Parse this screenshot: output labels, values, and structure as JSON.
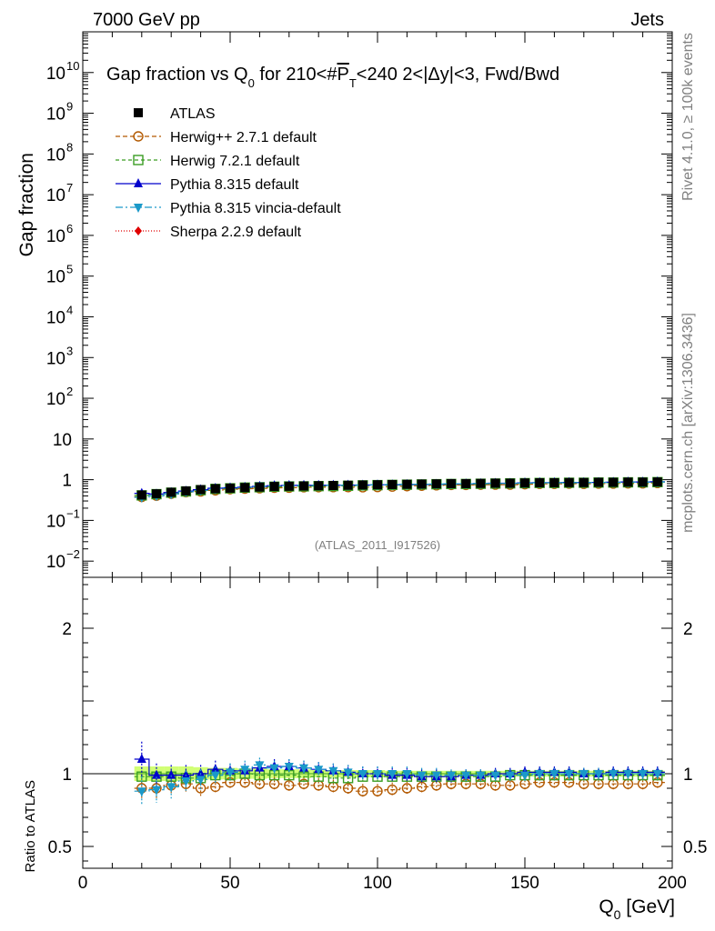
{
  "header": {
    "left": "7000 GeV pp",
    "right": "Jets"
  },
  "side_labels": {
    "rivet": "Rivet 4.1.0, ≥ 100k events",
    "mcplots": "mcplots.cern.ch [arXiv:1306.3436]"
  },
  "chart_data": {
    "type": "scatter",
    "title": "Gap fraction vs Q",
    "title_sub": "0",
    "title_rest": " for 210<#",
    "title_pbar": "P",
    "title_pbar_sub": "T",
    "title_tail": "<240  2<|Δy|<3, Fwd/Bwd",
    "analysis_tag": "(ATLAS_2011_I917526)",
    "xlabel": "Q",
    "xlabel_sub": "0",
    "xlabel_unit": " [GeV]",
    "ylabel_main": "Gap fraction",
    "ylabel_ratio": "Ratio to ATLAS",
    "xlim": [
      0,
      200
    ],
    "x_ticks": [
      "0",
      "50",
      "100",
      "150",
      "200"
    ],
    "x_tick_values": [
      0,
      50,
      100,
      150,
      200
    ],
    "main_ylim": [
      0.004,
      100000000000
    ],
    "main_yscale": "log",
    "main_y_ticks": [
      {
        "v": 10000000000.0,
        "label": "10",
        "sup": "10"
      },
      {
        "v": 1000000000.0,
        "label": "10",
        "sup": "9"
      },
      {
        "v": 100000000.0,
        "label": "10",
        "sup": "8"
      },
      {
        "v": 10000000.0,
        "label": "10",
        "sup": "7"
      },
      {
        "v": 1000000.0,
        "label": "10",
        "sup": "6"
      },
      {
        "v": 100000.0,
        "label": "10",
        "sup": "5"
      },
      {
        "v": 10000.0,
        "label": "10",
        "sup": "4"
      },
      {
        "v": 1000.0,
        "label": "10",
        "sup": "3"
      },
      {
        "v": 100,
        "label": "10",
        "sup": "2"
      },
      {
        "v": 10,
        "label": "10",
        "sup": ""
      },
      {
        "v": 1,
        "label": "1",
        "sup": ""
      },
      {
        "v": 0.1,
        "label": "10",
        "sup": "−1"
      },
      {
        "v": 0.01,
        "label": "10",
        "sup": "−2"
      }
    ],
    "ratio_ylim": [
      0.35,
      2.35
    ],
    "ratio_y_ticks": [
      {
        "v": 0.5,
        "label": "0.5"
      },
      {
        "v": 1,
        "label": "1"
      },
      {
        "v": 2,
        "label": "2"
      }
    ],
    "legend_position": "top-left",
    "x": [
      20,
      25,
      30,
      35,
      40,
      45,
      50,
      55,
      60,
      65,
      70,
      75,
      80,
      85,
      90,
      95,
      100,
      105,
      110,
      115,
      120,
      125,
      130,
      135,
      140,
      145,
      150,
      155,
      160,
      165,
      170,
      175,
      180,
      185,
      190,
      195
    ],
    "data": {
      "name": "ATLAS",
      "values": [
        0.42,
        0.45,
        0.49,
        0.53,
        0.57,
        0.6,
        0.62,
        0.64,
        0.66,
        0.68,
        0.69,
        0.7,
        0.71,
        0.72,
        0.73,
        0.74,
        0.75,
        0.76,
        0.77,
        0.78,
        0.79,
        0.8,
        0.8,
        0.81,
        0.82,
        0.82,
        0.83,
        0.84,
        0.84,
        0.85,
        0.85,
        0.86,
        0.86,
        0.87,
        0.87,
        0.88
      ],
      "band": [
        0.05,
        0.05,
        0.05,
        0.05,
        0.045,
        0.04,
        0.04,
        0.035,
        0.035,
        0.03,
        0.03,
        0.03,
        0.025,
        0.025,
        0.025,
        0.025,
        0.025,
        0.02,
        0.02,
        0.02,
        0.02,
        0.02,
        0.02,
        0.02,
        0.02,
        0.02,
        0.02,
        0.02,
        0.02,
        0.02,
        0.02,
        0.02,
        0.02,
        0.02,
        0.02,
        0.02
      ]
    },
    "series": [
      {
        "name": "Herwig++ 2.7.1 default",
        "color": "#b35900",
        "marker": "circle-open",
        "dash": "5,3",
        "ratio": [
          0.9,
          0.9,
          0.92,
          0.93,
          0.9,
          0.91,
          0.94,
          0.94,
          0.93,
          0.93,
          0.92,
          0.93,
          0.92,
          0.91,
          0.9,
          0.88,
          0.88,
          0.89,
          0.9,
          0.91,
          0.92,
          0.93,
          0.93,
          0.93,
          0.92,
          0.92,
          0.93,
          0.94,
          0.94,
          0.94,
          0.93,
          0.93,
          0.93,
          0.93,
          0.93,
          0.94
        ],
        "err": [
          0.07,
          0.07,
          0.06,
          0.06,
          0.06,
          0.05,
          0.05,
          0.05,
          0.05,
          0.05,
          0.05,
          0.05,
          0.05,
          0.05,
          0.05,
          0.05,
          0.05,
          0.05,
          0.05,
          0.05,
          0.05,
          0.05,
          0.05,
          0.05,
          0.05,
          0.05,
          0.05,
          0.05,
          0.05,
          0.05,
          0.05,
          0.05,
          0.05,
          0.05,
          0.05,
          0.05
        ]
      },
      {
        "name": "Herwig 7.2.1 default",
        "color": "#3a9d23",
        "marker": "square-open",
        "dash": "4,3",
        "ratio": [
          0.98,
          0.98,
          0.98,
          0.97,
          0.97,
          0.99,
          0.99,
          1.0,
          0.99,
          0.99,
          0.99,
          0.98,
          0.98,
          0.97,
          0.97,
          0.98,
          0.98,
          0.98,
          0.98,
          0.98,
          0.98,
          0.98,
          0.98,
          0.98,
          0.98,
          0.99,
          0.99,
          0.99,
          0.99,
          0.99,
          0.99,
          0.99,
          0.99,
          0.99,
          0.99,
          0.99
        ],
        "err": [
          0.04,
          0.04,
          0.04,
          0.04,
          0.04,
          0.035,
          0.035,
          0.03,
          0.03,
          0.03,
          0.03,
          0.03,
          0.03,
          0.03,
          0.03,
          0.03,
          0.03,
          0.03,
          0.03,
          0.03,
          0.03,
          0.03,
          0.03,
          0.03,
          0.03,
          0.03,
          0.03,
          0.03,
          0.03,
          0.03,
          0.03,
          0.03,
          0.03,
          0.03,
          0.03,
          0.03
        ]
      },
      {
        "name": "Pythia 8.315 default",
        "color": "#0000cc",
        "marker": "triangle-up",
        "dash": "",
        "ratio": [
          1.1,
          0.99,
          0.99,
          0.99,
          1.0,
          1.03,
          1.02,
          1.02,
          1.04,
          1.05,
          1.05,
          1.04,
          1.03,
          1.02,
          1.01,
          1.0,
          1.0,
          0.99,
          0.99,
          0.98,
          0.98,
          0.98,
          0.99,
          0.99,
          1.0,
          1.0,
          1.01,
          1.01,
          1.01,
          1.01,
          1.0,
          1.0,
          1.01,
          1.01,
          1.01,
          1.01
        ],
        "err": [
          0.12,
          0.08,
          0.07,
          0.07,
          0.06,
          0.06,
          0.05,
          0.05,
          0.05,
          0.05,
          0.05,
          0.05,
          0.05,
          0.05,
          0.05,
          0.05,
          0.05,
          0.05,
          0.05,
          0.05,
          0.05,
          0.04,
          0.04,
          0.04,
          0.04,
          0.04,
          0.04,
          0.04,
          0.04,
          0.04,
          0.04,
          0.04,
          0.04,
          0.04,
          0.04,
          0.04
        ]
      },
      {
        "name": "Pythia 8.315 vincia-default",
        "color": "#1a99c9",
        "marker": "triangle-down",
        "dash": "8,3,2,3",
        "ratio": [
          0.88,
          0.89,
          0.91,
          0.95,
          0.96,
          0.99,
          1.01,
          1.03,
          1.06,
          1.04,
          1.05,
          1.04,
          1.03,
          1.02,
          1.01,
          1.0,
          1.0,
          1.0,
          1.0,
          0.99,
          0.99,
          0.99,
          0.99,
          0.99,
          0.99,
          0.99,
          0.99,
          1.0,
          1.0,
          1.0,
          1.0,
          1.0,
          1.0,
          1.0,
          1.0,
          1.0
        ],
        "err": [
          0.1,
          0.09,
          0.08,
          0.07,
          0.07,
          0.06,
          0.06,
          0.06,
          0.05,
          0.05,
          0.05,
          0.05,
          0.05,
          0.05,
          0.05,
          0.05,
          0.05,
          0.05,
          0.05,
          0.05,
          0.05,
          0.04,
          0.04,
          0.04,
          0.04,
          0.04,
          0.04,
          0.04,
          0.04,
          0.04,
          0.04,
          0.04,
          0.04,
          0.04,
          0.04,
          0.04
        ]
      },
      {
        "name": "Sherpa 2.2.9 default",
        "color": "#e00000",
        "marker": "diamond",
        "dash": "1,2",
        "ratio": [],
        "err": []
      }
    ]
  }
}
